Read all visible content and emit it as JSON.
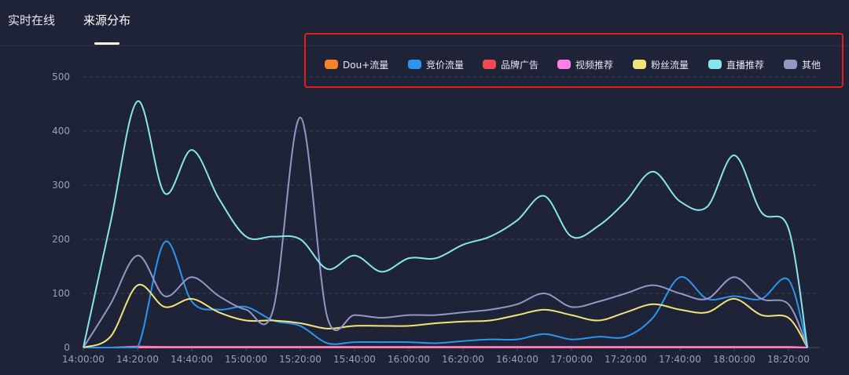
{
  "tabs": [
    {
      "label": "实时在线"
    },
    {
      "label": "来源分布"
    }
  ],
  "active_tab": 1,
  "chart_data": {
    "type": "line",
    "x": [
      "14:00:00",
      "14:10:00",
      "14:20:00",
      "14:30:00",
      "14:40:00",
      "14:50:00",
      "15:00:00",
      "15:10:00",
      "15:20:00",
      "15:30:00",
      "15:40:00",
      "15:50:00",
      "16:00:00",
      "16:10:00",
      "16:20:00",
      "16:30:00",
      "16:40:00",
      "16:50:00",
      "17:00:00",
      "17:10:00",
      "17:20:00",
      "17:30:00",
      "17:40:00",
      "17:50:00",
      "18:00:00",
      "18:10:00",
      "18:20:00",
      "18:27:00"
    ],
    "x_tick_labels": [
      "14:00:00",
      "14:20:00",
      "14:40:00",
      "15:00:00",
      "15:20:00",
      "15:40:00",
      "16:00:00",
      "16:20:00",
      "16:40:00",
      "17:00:00",
      "17:20:00",
      "17:40:00",
      "18:00:00",
      "18:20:00"
    ],
    "ylim": [
      0,
      500
    ],
    "y_ticks": [
      0,
      100,
      200,
      300,
      400,
      500
    ],
    "grid": true,
    "legend_position": "top-right",
    "series": [
      {
        "name": "Dou+流量",
        "color": "#f5842a",
        "values": [
          0,
          0,
          0,
          0,
          0,
          0,
          0,
          0,
          0,
          0,
          0,
          0,
          0,
          0,
          0,
          0,
          0,
          0,
          0,
          0,
          0,
          0,
          0,
          0,
          0,
          0,
          0,
          0
        ]
      },
      {
        "name": "竞价流量",
        "color": "#2b96f0",
        "values": [
          0,
          0,
          0,
          195,
          85,
          70,
          75,
          50,
          40,
          8,
          10,
          10,
          10,
          8,
          12,
          15,
          15,
          25,
          15,
          20,
          20,
          55,
          130,
          90,
          95,
          90,
          125,
          0
        ]
      },
      {
        "name": "品牌广告",
        "color": "#f04a4f",
        "values": [
          0,
          0,
          2,
          1,
          1,
          1,
          1,
          1,
          1,
          1,
          1,
          1,
          1,
          1,
          1,
          1,
          1,
          1,
          1,
          1,
          1,
          1,
          1,
          1,
          1,
          1,
          1,
          0
        ]
      },
      {
        "name": "视频推荐",
        "color": "#ff7fe8",
        "values": [
          0,
          0,
          1,
          1,
          1,
          1,
          1,
          1,
          1,
          1,
          1,
          1,
          1,
          1,
          1,
          1,
          1,
          1,
          1,
          1,
          1,
          1,
          1,
          1,
          1,
          1,
          1,
          0
        ]
      },
      {
        "name": "粉丝流量",
        "color": "#f3e37a",
        "values": [
          0,
          20,
          115,
          75,
          90,
          65,
          50,
          50,
          45,
          35,
          40,
          40,
          40,
          45,
          48,
          50,
          60,
          70,
          60,
          50,
          65,
          80,
          70,
          65,
          90,
          60,
          55,
          0
        ]
      },
      {
        "name": "直播推荐",
        "color": "#86e5ee",
        "values": [
          0,
          230,
          455,
          285,
          365,
          275,
          205,
          205,
          200,
          145,
          170,
          140,
          165,
          165,
          190,
          205,
          235,
          280,
          205,
          225,
          270,
          325,
          270,
          260,
          355,
          250,
          220,
          0
        ]
      },
      {
        "name": "其他",
        "color": "#9497c6",
        "values": [
          0,
          80,
          170,
          95,
          130,
          95,
          70,
          70,
          425,
          55,
          60,
          55,
          60,
          60,
          65,
          70,
          80,
          100,
          75,
          85,
          100,
          115,
          100,
          90,
          130,
          90,
          80,
          0
        ]
      }
    ]
  }
}
